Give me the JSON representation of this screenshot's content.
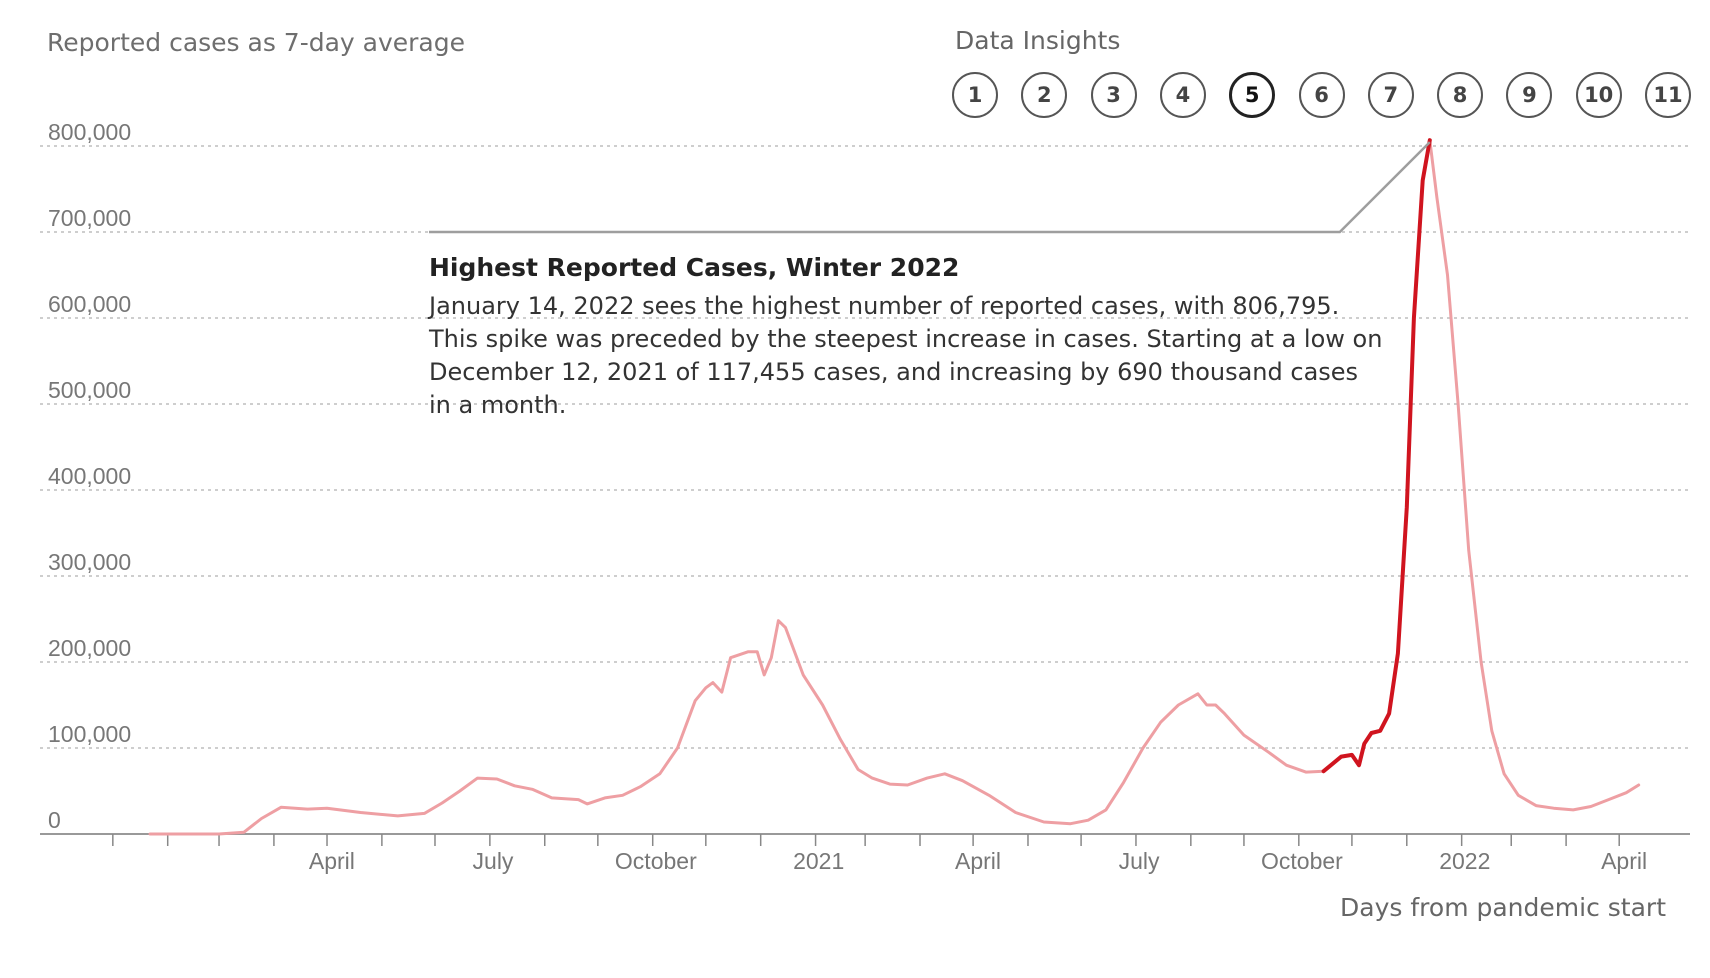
{
  "chart": {
    "y_axis_title": "Reported cases as 7-day average",
    "x_axis_title": "Days from pandemic start"
  },
  "insights": {
    "title": "Data Insights",
    "buttons": [
      "1",
      "2",
      "3",
      "4",
      "5",
      "6",
      "7",
      "8",
      "9",
      "10",
      "11"
    ],
    "active_index": 4
  },
  "annotation": {
    "title": "Highest Reported Cases, Winter 2022",
    "lines": [
      "January 14, 2022 sees the highest number of reported cases, with 806,795.",
      "This spike was preceded by the steepest increase in cases. Starting at a low on",
      "December 12, 2021 of 117,455 cases, and increasing by 690 thousand cases",
      "in a month."
    ],
    "pointer_date": "2022-01-14",
    "pointer_value": 806795,
    "pointer_elbow_value": 700000
  },
  "colors": {
    "line_light": "#ee9fa3",
    "line_highlight": "#d0141f",
    "grid": "#bdbdbd",
    "axis": "#999999",
    "pointer": "#9e9e9e"
  },
  "chart_data": {
    "type": "line",
    "x_axis": "date",
    "xlim": [
      "2020-01-22",
      "2022-05-28"
    ],
    "ylim": [
      0,
      800000
    ],
    "yticks": [
      0,
      100000,
      200000,
      300000,
      400000,
      500000,
      600000,
      700000,
      800000
    ],
    "ytick_labels": [
      "0",
      "100,000",
      "200,000",
      "300,000",
      "400,000",
      "500,000",
      "600,000",
      "700,000",
      "800,000"
    ],
    "xtick_labels": [
      {
        "label": "April",
        "date": "2020-04-01"
      },
      {
        "label": "July",
        "date": "2020-07-01"
      },
      {
        "label": "October",
        "date": "2020-10-01"
      },
      {
        "label": "2021",
        "date": "2021-01-01"
      },
      {
        "label": "April",
        "date": "2021-04-01"
      },
      {
        "label": "July",
        "date": "2021-07-01"
      },
      {
        "label": "October",
        "date": "2021-10-01"
      },
      {
        "label": "2022",
        "date": "2022-01-01"
      },
      {
        "label": "April",
        "date": "2022-04-01"
      }
    ],
    "grid": true,
    "highlight_range": [
      "2021-11-15",
      "2022-01-14"
    ],
    "series": [
      {
        "points": [
          [
            "2020-01-22",
            0
          ],
          [
            "2020-02-15",
            0
          ],
          [
            "2020-03-01",
            0
          ],
          [
            "2020-03-15",
            2000
          ],
          [
            "2020-03-25",
            18000
          ],
          [
            "2020-04-05",
            31000
          ],
          [
            "2020-04-20",
            29000
          ],
          [
            "2020-05-01",
            30000
          ],
          [
            "2020-05-20",
            25000
          ],
          [
            "2020-06-10",
            21000
          ],
          [
            "2020-06-25",
            24000
          ],
          [
            "2020-07-05",
            36000
          ],
          [
            "2020-07-15",
            50000
          ],
          [
            "2020-07-25",
            65000
          ],
          [
            "2020-08-05",
            64000
          ],
          [
            "2020-08-15",
            56000
          ],
          [
            "2020-08-25",
            52000
          ],
          [
            "2020-09-05",
            42000
          ],
          [
            "2020-09-20",
            40000
          ],
          [
            "2020-09-25",
            35000
          ],
          [
            "2020-10-05",
            42000
          ],
          [
            "2020-10-15",
            45000
          ],
          [
            "2020-10-25",
            55000
          ],
          [
            "2020-11-05",
            70000
          ],
          [
            "2020-11-15",
            100000
          ],
          [
            "2020-11-25",
            155000
          ],
          [
            "2020-12-01",
            170000
          ],
          [
            "2020-12-05",
            176000
          ],
          [
            "2020-12-10",
            165000
          ],
          [
            "2020-12-15",
            205000
          ],
          [
            "2020-12-25",
            212000
          ],
          [
            "2020-12-30",
            212000
          ],
          [
            "2021-01-03",
            185000
          ],
          [
            "2021-01-07",
            205000
          ],
          [
            "2021-01-11",
            248000
          ],
          [
            "2021-01-15",
            240000
          ],
          [
            "2021-01-25",
            185000
          ],
          [
            "2021-02-05",
            150000
          ],
          [
            "2021-02-15",
            110000
          ],
          [
            "2021-02-25",
            75000
          ],
          [
            "2021-03-05",
            65000
          ],
          [
            "2021-03-15",
            58000
          ],
          [
            "2021-03-25",
            57000
          ],
          [
            "2021-04-05",
            65000
          ],
          [
            "2021-04-15",
            70000
          ],
          [
            "2021-04-25",
            62000
          ],
          [
            "2021-05-10",
            45000
          ],
          [
            "2021-05-25",
            25000
          ],
          [
            "2021-06-10",
            14000
          ],
          [
            "2021-06-25",
            12000
          ],
          [
            "2021-07-05",
            16000
          ],
          [
            "2021-07-15",
            28000
          ],
          [
            "2021-07-25",
            60000
          ],
          [
            "2021-08-05",
            100000
          ],
          [
            "2021-08-15",
            130000
          ],
          [
            "2021-08-25",
            150000
          ],
          [
            "2021-09-05",
            163000
          ],
          [
            "2021-09-10",
            150000
          ],
          [
            "2021-09-15",
            150000
          ],
          [
            "2021-09-20",
            140000
          ],
          [
            "2021-10-01",
            115000
          ],
          [
            "2021-10-15",
            95000
          ],
          [
            "2021-10-25",
            80000
          ],
          [
            "2021-11-05",
            72000
          ],
          [
            "2021-11-15",
            73000
          ],
          [
            "2021-11-25",
            90000
          ],
          [
            "2021-12-01",
            92000
          ],
          [
            "2021-12-05",
            80000
          ],
          [
            "2021-12-08",
            105000
          ],
          [
            "2021-12-12",
            117455
          ],
          [
            "2021-12-17",
            120000
          ],
          [
            "2021-12-22",
            140000
          ],
          [
            "2021-12-27",
            210000
          ],
          [
            "2022-01-01",
            380000
          ],
          [
            "2022-01-05",
            600000
          ],
          [
            "2022-01-10",
            760000
          ],
          [
            "2022-01-14",
            806795
          ],
          [
            "2022-01-18",
            740000
          ],
          [
            "2022-01-24",
            650000
          ],
          [
            "2022-01-30",
            500000
          ],
          [
            "2022-02-05",
            330000
          ],
          [
            "2022-02-12",
            200000
          ],
          [
            "2022-02-18",
            120000
          ],
          [
            "2022-02-25",
            70000
          ],
          [
            "2022-03-05",
            45000
          ],
          [
            "2022-03-15",
            33000
          ],
          [
            "2022-03-25",
            30000
          ],
          [
            "2022-04-05",
            28000
          ],
          [
            "2022-04-15",
            32000
          ],
          [
            "2022-04-25",
            40000
          ],
          [
            "2022-05-05",
            48000
          ],
          [
            "2022-05-12",
            57000
          ]
        ]
      }
    ]
  }
}
